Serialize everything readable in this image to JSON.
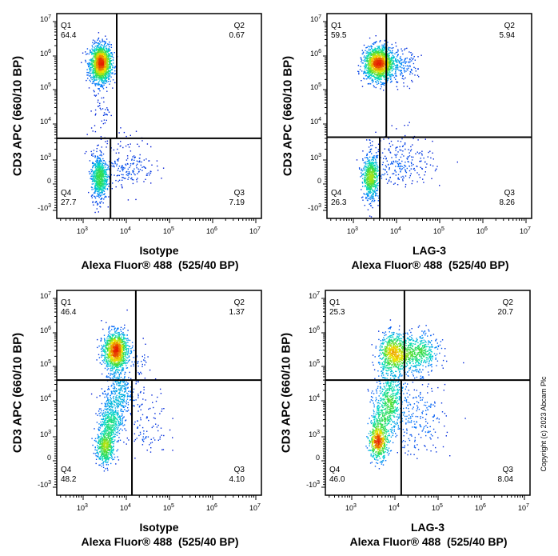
{
  "copyright": "Copyright (c) 2023 Abcam Plc",
  "chart_data": [
    {
      "type": "scatter",
      "ylabel": "CD3 APC (660/10 BP)",
      "xlabel_line1": "Isotype",
      "xlabel_line2": "Alexa Fluor® 488  (525/40 BP)",
      "xscale": "log",
      "xlim": [
        250,
        10000000
      ],
      "yscale": "biexponential",
      "ylim": [
        -1500,
        10000000
      ],
      "xticks": [
        "10^3",
        "10^4",
        "10^5",
        "10^6",
        "10^7"
      ],
      "yticks": [
        "10^7",
        "10^6",
        "10^5",
        "10^4",
        "10^3",
        "0",
        "-10^3"
      ],
      "gate": {
        "x_upper": 6000,
        "x_lower": 4300,
        "y": 4000
      },
      "quadrants": {
        "Q1": "64.4",
        "Q2": "0.67",
        "Q3": "7.19",
        "Q4": "27.7"
      },
      "populations": [
        {
          "x": 2500,
          "y": 600000,
          "sx": 0.12,
          "sy": 0.28,
          "w": 0.62
        },
        {
          "x": 2600,
          "y": 30000,
          "sx": 0.1,
          "sy": 0.5,
          "w": 0.02
        },
        {
          "x": 2300,
          "y": 300,
          "sx": 0.09,
          "sy": 0.45,
          "w": 0.27
        },
        {
          "x": 10000,
          "y": 800,
          "sx": 0.33,
          "sy": 0.45,
          "w": 0.08
        }
      ]
    },
    {
      "type": "scatter",
      "ylabel": "CD3 APC (660/10 BP)",
      "xlabel_line1": "LAG-3",
      "xlabel_line2": "Alexa Fluor® 488  (525/40 BP)",
      "xscale": "log",
      "xlim": [
        250,
        10000000
      ],
      "yscale": "biexponential",
      "ylim": [
        -1500,
        10000000
      ],
      "xticks": [
        "10^3",
        "10^4",
        "10^5",
        "10^6",
        "10^7"
      ],
      "yticks": [
        "10^7",
        "10^6",
        "10^5",
        "10^4",
        "10^3",
        "0",
        "-10^3"
      ],
      "gate": {
        "x_upper": 5800,
        "x_lower": 4100,
        "y": 4300
      },
      "quadrants": {
        "Q1": "59.5",
        "Q2": "5.94",
        "Q3": "8.26",
        "Q4": "26.3"
      },
      "populations": [
        {
          "x": 3800,
          "y": 600000,
          "sx": 0.17,
          "sy": 0.25,
          "w": 0.57
        },
        {
          "x": 12000,
          "y": 500000,
          "sx": 0.2,
          "sy": 0.25,
          "w": 0.06
        },
        {
          "x": 2500,
          "y": 300,
          "sx": 0.09,
          "sy": 0.45,
          "w": 0.26
        },
        {
          "x": 14000,
          "y": 900,
          "sx": 0.35,
          "sy": 0.45,
          "w": 0.09
        }
      ]
    },
    {
      "type": "scatter",
      "ylabel": "CD3 APC (660/10 BP)",
      "xlabel_line1": "Isotype",
      "xlabel_line2": "Alexa Fluor® 488  (525/40 BP)",
      "xscale": "log",
      "xlim": [
        250,
        10000000
      ],
      "yscale": "biexponential",
      "ylim": [
        -1500,
        10000000
      ],
      "xticks": [
        "10^3",
        "10^4",
        "10^5",
        "10^6",
        "10^7"
      ],
      "yticks": [
        "10^7",
        "10^6",
        "10^5",
        "10^4",
        "10^3",
        "0",
        "-10^3"
      ],
      "gate": {
        "x_upper": 16600,
        "x_lower": 13500,
        "y": 40000
      },
      "quadrants": {
        "Q1": "46.4",
        "Q2": "1.37",
        "Q3": "4.10",
        "Q4": "48.2"
      },
      "populations": [
        {
          "x": 5500,
          "y": 300000,
          "sx": 0.14,
          "sy": 0.28,
          "w": 0.45
        },
        {
          "x": 3200,
          "y": 600,
          "sx": 0.1,
          "sy": 0.4,
          "w": 0.2
        },
        {
          "x": 4200,
          "y": 3000,
          "sx": 0.13,
          "sy": 0.35,
          "w": 0.15
        },
        {
          "x": 6500,
          "y": 18000,
          "sx": 0.16,
          "sy": 0.35,
          "w": 0.12
        },
        {
          "x": 22000,
          "y": 3000,
          "sx": 0.3,
          "sy": 0.6,
          "w": 0.05
        },
        {
          "x": 20000,
          "y": 150000,
          "sx": 0.12,
          "sy": 0.3,
          "w": 0.015
        }
      ]
    },
    {
      "type": "scatter",
      "ylabel": "CD3 APC (660/10 BP)",
      "xlabel_line1": "LAG-3",
      "xlabel_line2": "Alexa Fluor® 488  (525/40 BP)",
      "xscale": "log",
      "xlim": [
        250,
        10000000
      ],
      "yscale": "biexponential",
      "ylim": [
        -1500,
        10000000
      ],
      "xticks": [
        "10^3",
        "10^4",
        "10^5",
        "10^6",
        "10^7"
      ],
      "yticks": [
        "10^7",
        "10^6",
        "10^5",
        "10^4",
        "10^3",
        "0",
        "-10^3"
      ],
      "gate": {
        "x_upper": 16600,
        "x_lower": 14000,
        "y": 40000
      },
      "quadrants": {
        "Q1": "25.3",
        "Q2": "20.7",
        "Q3": "8.04",
        "Q4": "46.0"
      },
      "populations": [
        {
          "x": 9000,
          "y": 250000,
          "sx": 0.17,
          "sy": 0.3,
          "w": 0.25
        },
        {
          "x": 32000,
          "y": 250000,
          "sx": 0.25,
          "sy": 0.3,
          "w": 0.2
        },
        {
          "x": 4000,
          "y": 900,
          "sx": 0.11,
          "sy": 0.4,
          "w": 0.24
        },
        {
          "x": 7500,
          "y": 9000,
          "sx": 0.17,
          "sy": 0.45,
          "w": 0.22
        },
        {
          "x": 35000,
          "y": 3000,
          "sx": 0.3,
          "sy": 0.6,
          "w": 0.08
        }
      ]
    }
  ]
}
